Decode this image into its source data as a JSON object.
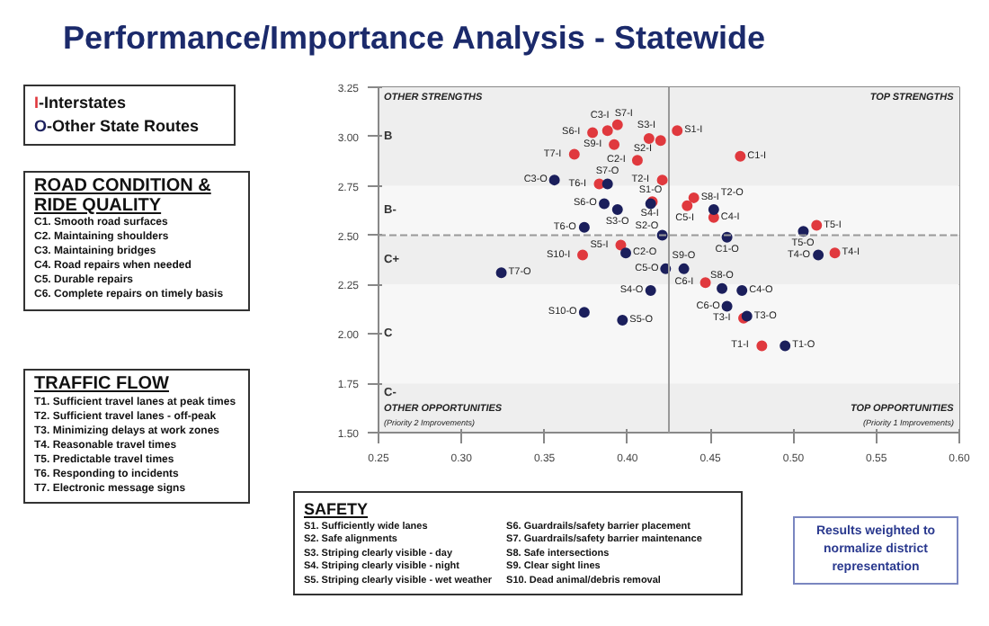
{
  "chart_data": {
    "type": "scatter",
    "title": "Performance/Importance Analysis - Statewide",
    "xlim": [
      0.25,
      0.6
    ],
    "ylim": [
      1.5,
      3.25
    ],
    "xticks": [
      {
        "value": 0.25,
        "label": "0.25"
      },
      {
        "value": 0.3,
        "label": "0.30"
      },
      {
        "value": 0.35,
        "label": "0.35"
      },
      {
        "value": 0.4,
        "label": "0.40"
      },
      {
        "value": 0.45,
        "label": "0.45"
      },
      {
        "value": 0.5,
        "label": "0.50"
      },
      {
        "value": 0.55,
        "label": "0.55"
      },
      {
        "value": 0.6,
        "label": "0.60"
      }
    ],
    "yticks": [
      {
        "value": 1.5,
        "label": "1.50"
      },
      {
        "value": 1.75,
        "label": "1.75"
      },
      {
        "value": 2.0,
        "label": "2.00"
      },
      {
        "value": 2.25,
        "label": "2.25"
      },
      {
        "value": 2.5,
        "label": "2.50"
      },
      {
        "value": 2.75,
        "label": "2.75"
      },
      {
        "value": 3.0,
        "label": "3.00"
      },
      {
        "value": 3.25,
        "label": "3.25"
      }
    ],
    "marker": "circle",
    "legend": "left",
    "series": [
      {
        "name": "I-Interstates",
        "color": "#e0393e",
        "x": [
          0.43,
          0.42,
          0.413,
          0.415,
          0.396,
          0.379,
          0.388,
          0.44,
          0.392,
          0.373,
          0.468,
          0.406,
          0.394,
          0.452,
          0.436,
          0.447,
          0.481,
          0.421,
          0.47,
          0.525,
          0.514,
          0.383,
          0.368
        ],
        "values": [
          3.03,
          2.98,
          2.99,
          2.67,
          2.45,
          3.02,
          3.03,
          2.69,
          2.96,
          2.4,
          2.9,
          2.88,
          3.06,
          2.59,
          2.65,
          2.26,
          1.94,
          2.78,
          2.08,
          2.41,
          2.55,
          2.76,
          2.91
        ],
        "value_labels": [
          "S1-I",
          "S2-I",
          "S3-I",
          "S4-I",
          "S5-I",
          "S6-I",
          "S7-I",
          "S8-I",
          "S9-I",
          "S10-I",
          "C1-I",
          "C2-I",
          "C3-I",
          "C4-I",
          "C5-I",
          "C6-I",
          "T1-I",
          "T2-I",
          "T3-I",
          "T4-I",
          "T5-I",
          "T6-I",
          "T7-I"
        ]
      },
      {
        "name": "O-Other State Routes",
        "color": "#1b1f5c",
        "x": [
          0.414,
          0.421,
          0.394,
          0.414,
          0.397,
          0.386,
          0.388,
          0.457,
          0.434,
          0.374,
          0.46,
          0.399,
          0.356,
          0.469,
          0.423,
          0.46,
          0.495,
          0.452,
          0.472,
          0.515,
          0.506,
          0.374,
          0.324
        ],
        "values": [
          2.66,
          2.5,
          2.63,
          2.22,
          2.07,
          2.66,
          2.76,
          2.23,
          2.33,
          2.11,
          2.49,
          2.41,
          2.78,
          2.22,
          2.33,
          2.14,
          1.94,
          2.63,
          2.09,
          2.4,
          2.52,
          2.54,
          2.31
        ],
        "value_labels": [
          "S1-O",
          "S2-O",
          "S3-O",
          "S4-O",
          "S5-O",
          "S6-O",
          "S7-O",
          "S8-O",
          "S9-O",
          "S10-O",
          "C1-O",
          "C2-O",
          "C3-O",
          "C4-O",
          "C5-O",
          "C6-O",
          "T1-O",
          "T2-O",
          "T3-O",
          "T4-O",
          "T5-O",
          "T6-O",
          "T7-O"
        ]
      }
    ],
    "ref_lines": [
      {
        "axis": "x",
        "value": 0.425,
        "color": "#999999",
        "line_style": "solid"
      },
      {
        "axis": "y",
        "value": 2.5,
        "color": "#999999",
        "line_style": "dashed"
      }
    ],
    "bands": [
      {
        "axis": "y",
        "from": 2.75,
        "to": 3.25,
        "label": "B",
        "color": "#eeeeee"
      },
      {
        "axis": "y",
        "from": 2.5,
        "to": 2.75,
        "label": "B-",
        "color": "#f7f7f7"
      },
      {
        "axis": "y",
        "from": 2.25,
        "to": 2.5,
        "label": "C+",
        "color": "#eeeeee"
      },
      {
        "axis": "y",
        "from": 1.75,
        "to": 2.25,
        "label": "C",
        "color": "#f7f7f7"
      },
      {
        "axis": "y",
        "from": 1.5,
        "to": 1.75,
        "label": "C-",
        "color": "#eeeeee"
      }
    ],
    "annotations": [
      "OTHER STRENGTHS",
      "TOP STRENGTHS",
      "OTHER OPPORTUNITIES\n(Priority 2 Improvements)",
      "TOP OPPORTUNITIES\n(Priority 1 Improvements)",
      "ROAD CONDITION &\nRIDE QUALITY",
      "C1. Smooth road surfaces\nC2. Maintaining shoulders\nC3. Maintaining bridges\nC4. Road repairs when needed\nC5. Durable repairs\nC6. Complete repairs on timely basis",
      "TRAFFIC FLOW",
      "T1. Sufficient travel lanes at peak times\nT2. Sufficient travel lanes - off-peak\nT3. Minimizing delays at work zones\nT4. Reasonable travel times\nT5. Predictable travel times\nT6. Responding to incidents\nT7. Electronic message signs",
      "SAFETY",
      "S1. Sufficiently wide lanes\nS2. Safe alignments\nS3. Striping clearly visible - day\nS4. Striping clearly visible - night\nS5. Striping clearly visible - wet weather",
      "S6. Guardrails/safety barrier placement\nS7. Guardrails/safety barrier maintenance\nS8. Safe intersections\nS9. Clear sight lines\nS10. Dead animal/debris removal",
      "Results weighted to\nnormalize district\nrepresentation"
    ]
  }
}
